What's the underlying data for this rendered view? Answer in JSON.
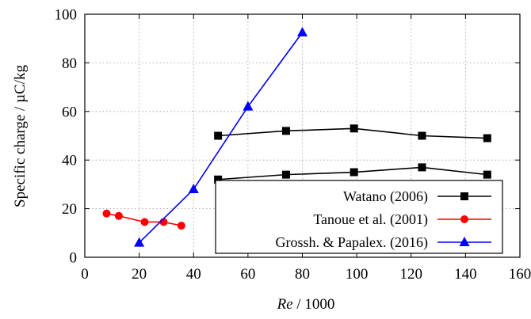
{
  "chart_data": {
    "type": "line",
    "xlabel_italic": "Re",
    "xlabel_rest": " / 1000",
    "ylabel": "Specific charge / µC/kg",
    "xlim": [
      0,
      160
    ],
    "ylim": [
      0,
      100
    ],
    "xticks": [
      0,
      20,
      40,
      60,
      80,
      100,
      120,
      140,
      160
    ],
    "yticks": [
      0,
      20,
      40,
      60,
      80,
      100
    ],
    "grid": true,
    "legend_position": "bottom-right",
    "series": [
      {
        "name": "Watano (2006)",
        "color": "#000000",
        "marker": "square",
        "segments": [
          {
            "x": [
              49,
              74,
              99,
              124,
              148
            ],
            "y": [
              50,
              52,
              53,
              50,
              49
            ]
          },
          {
            "x": [
              49,
              74,
              99,
              124,
              148
            ],
            "y": [
              32,
              34,
              35,
              37,
              34
            ]
          }
        ]
      },
      {
        "name": "Tanoue et al. (2001)",
        "color": "#ff0000",
        "marker": "circle",
        "segments": [
          {
            "x": [
              8,
              12.5,
              22,
              29,
              35.5
            ],
            "y": [
              18,
              17,
              14.5,
              14.5,
              13
            ]
          }
        ]
      },
      {
        "name": "Grossh. & Papalex. (2016)",
        "color": "#0000ff",
        "marker": "triangle",
        "segments": [
          {
            "x": [
              20,
              40,
              60,
              80
            ],
            "y": [
              6,
              28,
              62,
              92.5
            ]
          }
        ]
      }
    ]
  }
}
